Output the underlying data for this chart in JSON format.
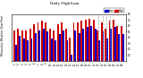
{
  "title": "Milwaukee Weather Dew Point",
  "subtitle": "Daily High/Low",
  "ylim": [
    0,
    80
  ],
  "yticks": [
    10,
    20,
    30,
    40,
    50,
    60,
    70,
    80
  ],
  "days": [
    1,
    2,
    3,
    4,
    5,
    6,
    7,
    8,
    9,
    10,
    11,
    12,
    13,
    14,
    15,
    16,
    17,
    18,
    19,
    20,
    21,
    22,
    23,
    24,
    25,
    26,
    27,
    28
  ],
  "high_values": [
    52,
    55,
    52,
    52,
    55,
    62,
    65,
    68,
    65,
    55,
    52,
    62,
    65,
    55,
    40,
    65,
    65,
    68,
    70,
    72,
    70,
    52,
    65,
    55,
    68,
    70,
    60,
    60
  ],
  "low_values": [
    28,
    42,
    38,
    35,
    38,
    48,
    52,
    55,
    50,
    38,
    35,
    45,
    52,
    35,
    10,
    52,
    48,
    55,
    58,
    60,
    55,
    35,
    50,
    38,
    55,
    58,
    45,
    45
  ],
  "high_color": "#cc0000",
  "low_color": "#0000cc",
  "bg_color": "#ffffff",
  "plot_bg": "#ffffff",
  "legend_high": "High",
  "legend_low": "Low",
  "bar_width": 0.42,
  "dashed_cols": [
    22,
    23,
    24,
    25
  ]
}
